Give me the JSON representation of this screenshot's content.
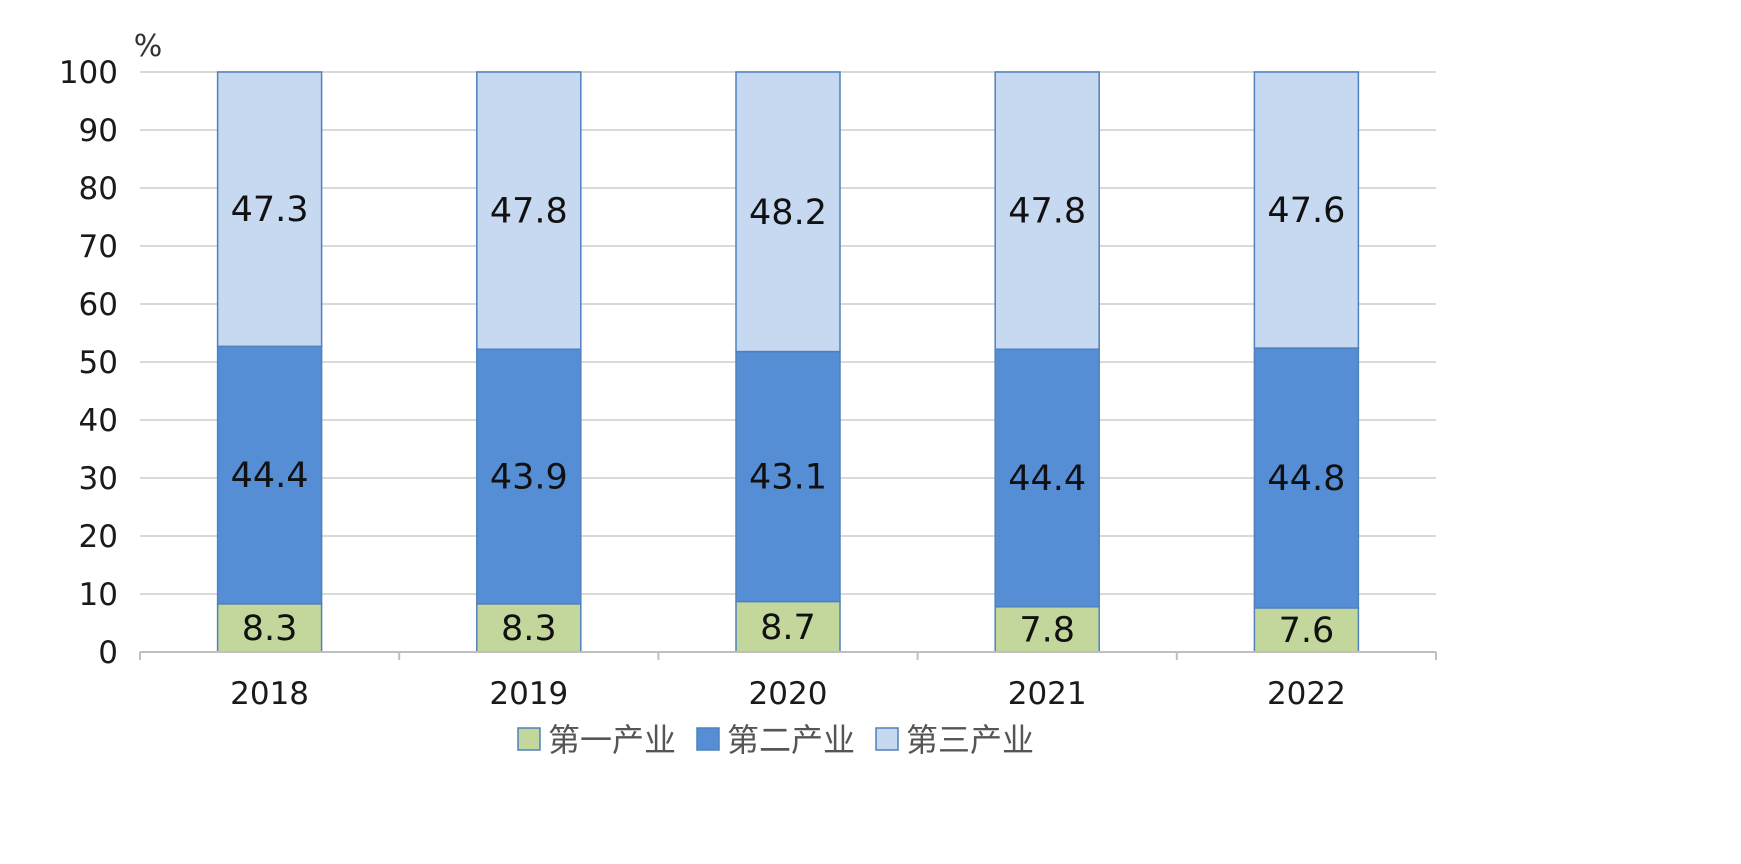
{
  "chart_data": {
    "type": "bar",
    "stacked": true,
    "unit": "%",
    "categories": [
      "2018",
      "2019",
      "2020",
      "2021",
      "2022"
    ],
    "series": [
      {
        "name": "第一产业",
        "values": [
          8.3,
          8.3,
          8.7,
          7.8,
          7.6
        ],
        "color": "#c3d69b"
      },
      {
        "name": "第二产业",
        "values": [
          44.4,
          43.9,
          43.1,
          44.4,
          44.8
        ],
        "color": "#558ed5"
      },
      {
        "name": "第三产业",
        "values": [
          47.3,
          47.8,
          48.2,
          47.8,
          47.6
        ],
        "color": "#c6d9f1"
      }
    ],
    "bar_outline_color": "#4f81bd",
    "ylim": [
      0,
      100
    ],
    "yticks": [
      0,
      10,
      20,
      30,
      40,
      50,
      60,
      70,
      80,
      90,
      100
    ],
    "grid": true,
    "legend_position": "bottom"
  }
}
